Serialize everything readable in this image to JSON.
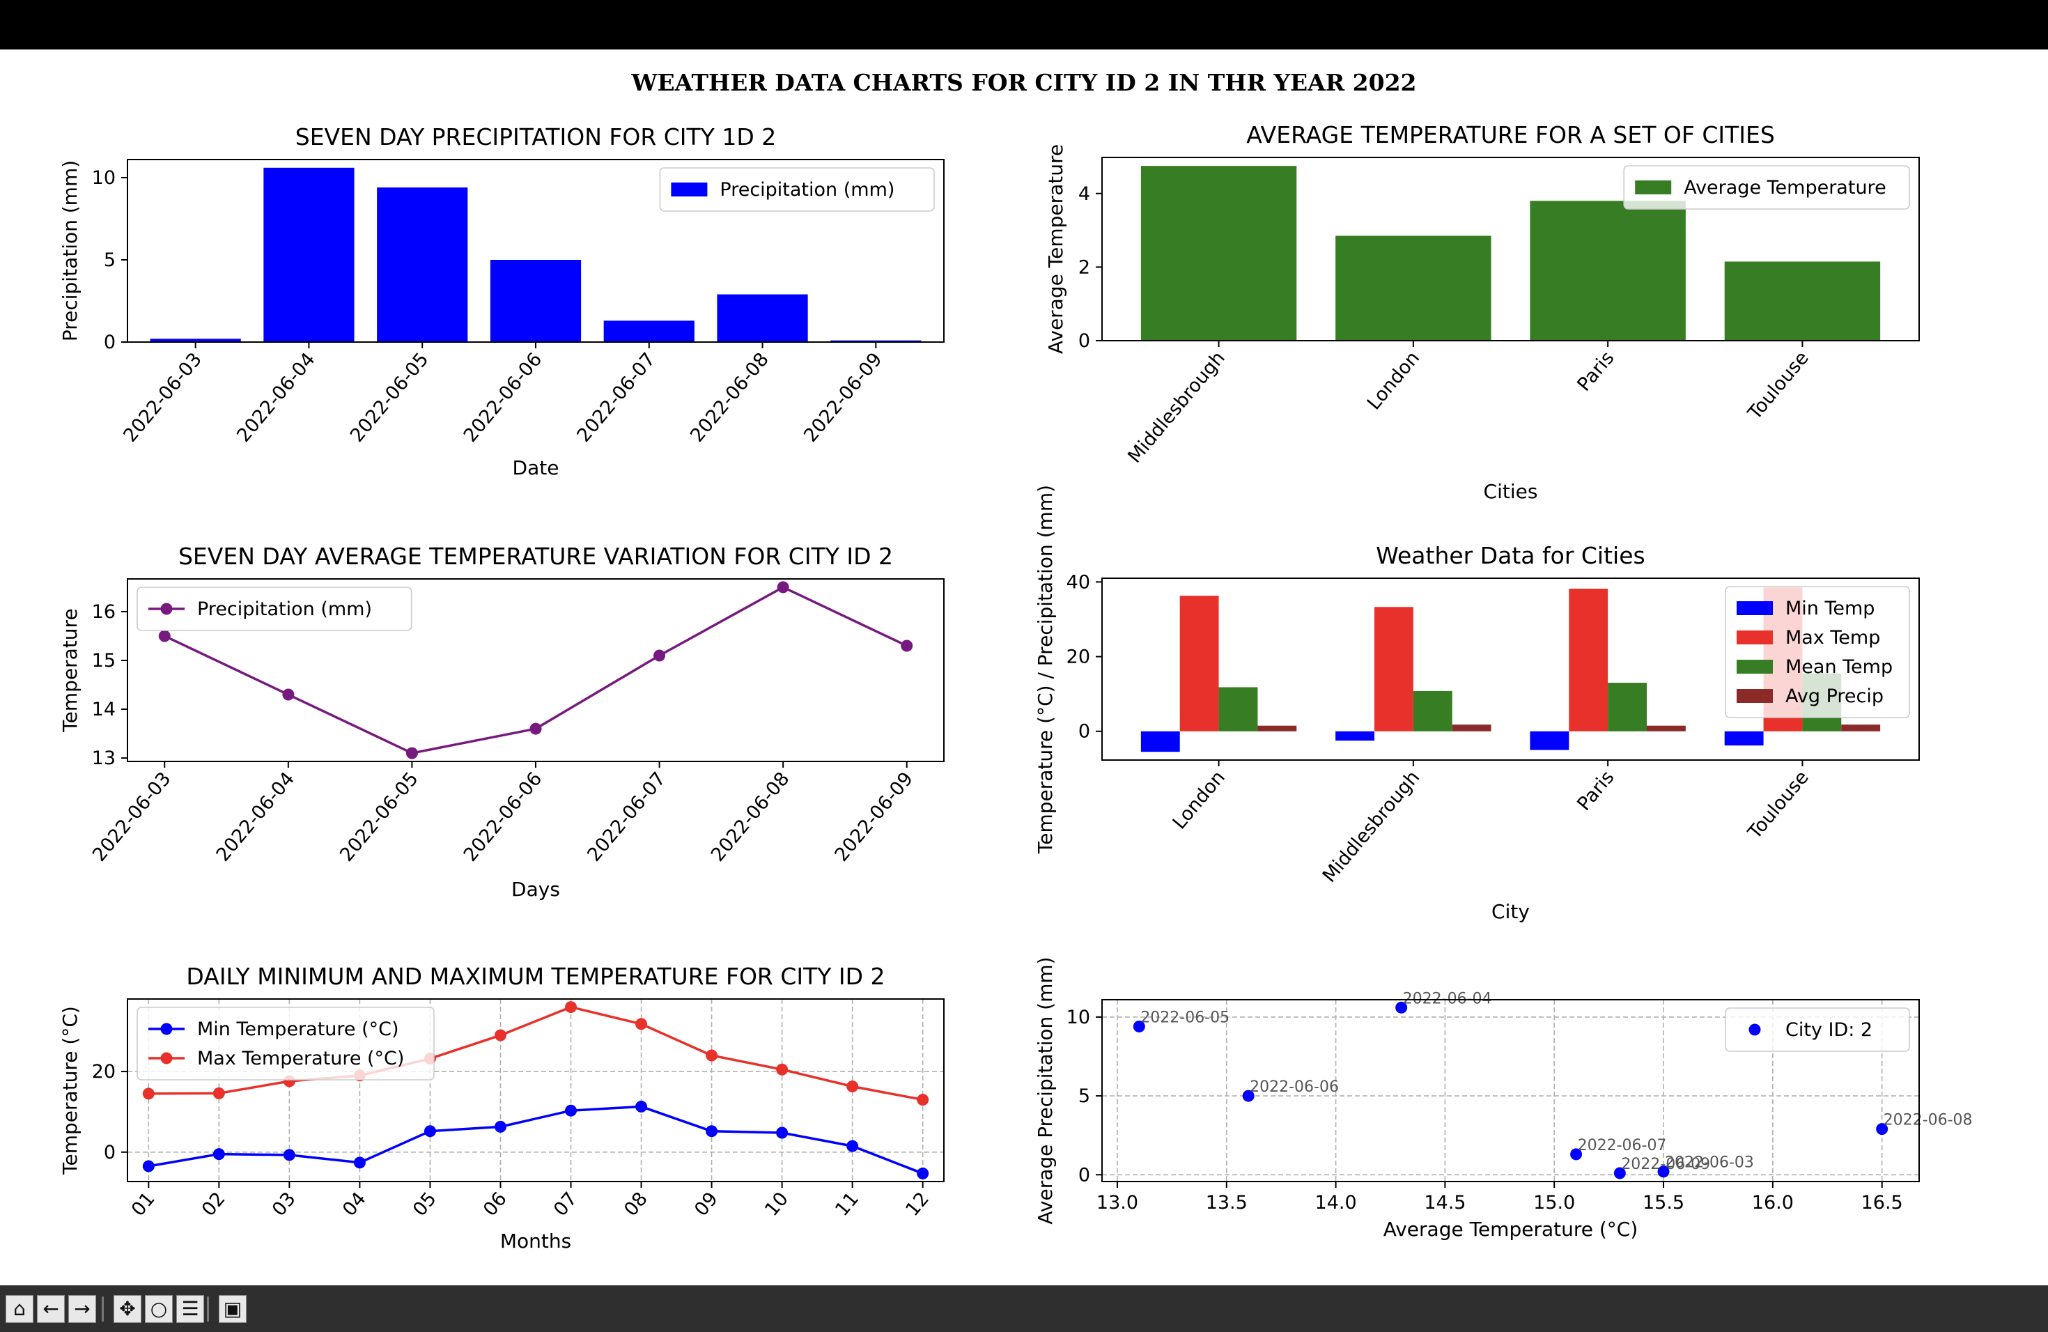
{
  "figure_title": "WEATHER DATA CHARTS FOR CITY ID 2 IN THR YEAR 2022",
  "toolbar": {
    "buttons": [
      {
        "name": "home-icon",
        "glyph": "⌂"
      },
      {
        "name": "back-arrow-icon",
        "glyph": "←"
      },
      {
        "name": "forward-arrow-icon",
        "glyph": "→"
      },
      {
        "name": "pan-icon",
        "glyph": "✥"
      },
      {
        "name": "zoom-icon",
        "glyph": "○"
      },
      {
        "name": "configure-subplots-icon",
        "glyph": "☰"
      },
      {
        "name": "save-icon",
        "glyph": "▣"
      }
    ]
  },
  "chart_data": [
    {
      "id": "precip",
      "type": "bar",
      "title": "SEVEN DAY PRECIPITATION FOR CITY 1D 2",
      "xlabel": "Date",
      "ylabel": "Precipitation (mm)",
      "categories": [
        "2022-06-03",
        "2022-06-04",
        "2022-06-05",
        "2022-06-06",
        "2022-06-07",
        "2022-06-08",
        "2022-06-09"
      ],
      "series": [
        {
          "name": "Precipitation (mm)",
          "values": [
            0.2,
            10.6,
            9.4,
            5.0,
            1.3,
            2.9,
            0.1
          ],
          "color": "#0000ff"
        }
      ],
      "ylim": [
        0,
        11.1
      ],
      "yticks": [
        0,
        5,
        10
      ],
      "legend": "upper-right",
      "grid": false
    },
    {
      "id": "avgtemp_cities",
      "type": "bar",
      "title": "AVERAGE TEMPERATURE FOR A SET OF CITIES",
      "xlabel": "Cities",
      "ylabel": "Average Temperature",
      "categories": [
        "Middlesbrough",
        "London",
        "Paris",
        "Toulouse"
      ],
      "series": [
        {
          "name": "Average Temperature",
          "values": [
            4.75,
            2.85,
            3.8,
            2.15
          ],
          "color": "#367d23"
        }
      ],
      "ylim": [
        0,
        4.98
      ],
      "yticks": [
        0,
        2,
        4
      ],
      "legend": "upper-right",
      "grid": false
    },
    {
      "id": "avgtemp_variation",
      "type": "line",
      "title": "SEVEN DAY AVERAGE TEMPERATURE VARIATION FOR CITY ID 2",
      "xlabel": "Days",
      "ylabel": "Temperature",
      "x": [
        "2022-06-03",
        "2022-06-04",
        "2022-06-05",
        "2022-06-06",
        "2022-06-07",
        "2022-06-08",
        "2022-06-09"
      ],
      "series": [
        {
          "name": "Precipitation (mm)",
          "values": [
            15.5,
            14.3,
            13.1,
            13.6,
            15.1,
            16.5,
            15.3
          ],
          "color": "#771a7f"
        }
      ],
      "ylim": [
        12.93,
        16.67
      ],
      "yticks": [
        13,
        14,
        15,
        16
      ],
      "legend": "upper-left",
      "grid": false
    },
    {
      "id": "weather_cities",
      "type": "bar",
      "title": "Weather Data for Cities",
      "xlabel": "City",
      "ylabel": "Temperature (°C) / Precipitation (mm)",
      "categories": [
        "London",
        "Middlesbrough",
        "Paris",
        "Toulouse"
      ],
      "series": [
        {
          "name": "Min Temp",
          "values": [
            -5.5,
            -2.5,
            -5.0,
            -3.8
          ],
          "color": "#0000ff"
        },
        {
          "name": "Max Temp",
          "values": [
            36.3,
            33.3,
            38.2,
            38.5
          ],
          "color": "#e8312a"
        },
        {
          "name": "Mean Temp",
          "values": [
            11.8,
            10.8,
            13.0,
            15.5
          ],
          "color": "#367d23"
        },
        {
          "name": "Avg Precip",
          "values": [
            1.5,
            1.8,
            1.5,
            1.8
          ],
          "color": "#8b2b29"
        }
      ],
      "ylim": [
        -7.7,
        41.0
      ],
      "yticks": [
        0,
        20,
        40
      ],
      "legend": "upper-right",
      "grid": false
    },
    {
      "id": "minmax_monthly",
      "type": "line",
      "title": "DAILY MINIMUM AND MAXIMUM TEMPERATURE FOR CITY ID 2",
      "xlabel": "Months",
      "ylabel": "Temperature (°C)",
      "x": [
        "01",
        "02",
        "03",
        "04",
        "05",
        "06",
        "07",
        "08",
        "09",
        "10",
        "11",
        "12"
      ],
      "series": [
        {
          "name": "Min Temperature (°C)",
          "values": [
            -3.5,
            -0.5,
            -0.7,
            -2.6,
            5.2,
            6.3,
            10.3,
            11.3,
            5.2,
            4.8,
            1.5,
            -5.3
          ],
          "color": "#0000ff"
        },
        {
          "name": "Max Temperature (°C)",
          "values": [
            14.5,
            14.6,
            17.6,
            19.0,
            23.2,
            29.0,
            36.0,
            31.8,
            24.0,
            20.5,
            16.3,
            13.0
          ],
          "color": "#e8312a"
        }
      ],
      "ylim": [
        -7.3,
        38.0
      ],
      "yticks": [
        0,
        20
      ],
      "legend": "upper-left",
      "grid": true
    },
    {
      "id": "scatter",
      "type": "scatter",
      "title": "",
      "xlabel": "Average Temperature (°C)",
      "ylabel": "Average Precipitation (mm)",
      "series": [
        {
          "name": "City ID: 2",
          "color": "#0000ff",
          "points": [
            {
              "x": 15.5,
              "y": 0.2,
              "label": "2022-06-03"
            },
            {
              "x": 14.3,
              "y": 10.6,
              "label": "2022-06-04"
            },
            {
              "x": 13.1,
              "y": 9.4,
              "label": "2022-06-05"
            },
            {
              "x": 13.6,
              "y": 5.0,
              "label": "2022-06-06"
            },
            {
              "x": 15.1,
              "y": 1.3,
              "label": "2022-06-07"
            },
            {
              "x": 16.5,
              "y": 2.9,
              "label": "2022-06-08"
            },
            {
              "x": 15.3,
              "y": 0.1,
              "label": "2022-06-09"
            }
          ]
        }
      ],
      "xlim": [
        12.93,
        16.67
      ],
      "xticks": [
        13.0,
        13.5,
        14.0,
        14.5,
        15.0,
        15.5,
        16.0,
        16.5
      ],
      "ylim": [
        -0.43,
        11.1
      ],
      "yticks": [
        0,
        5,
        10
      ],
      "legend": "upper-right",
      "grid": true
    }
  ]
}
